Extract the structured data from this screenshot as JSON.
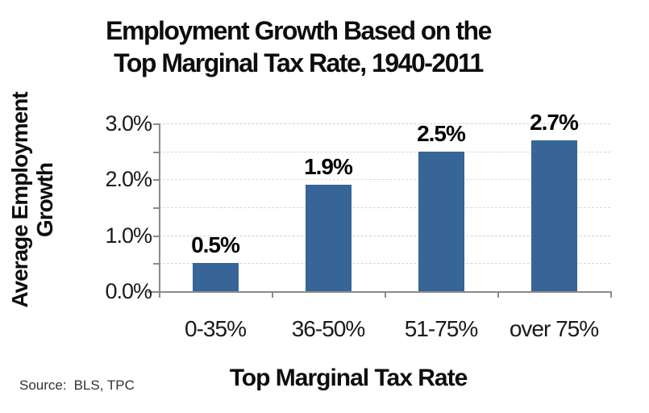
{
  "title": {
    "line1": "Employment Growth Based on the",
    "line2": "Top Marginal Tax Rate, 1940-2011"
  },
  "source": {
    "label": "Source:",
    "value": "BLS, TPC"
  },
  "chart_data": {
    "type": "bar",
    "title": "Employment Growth Based on the Top Marginal Tax Rate, 1940-2011",
    "categories": [
      "0-35%",
      "36-50%",
      "51-75%",
      "over 75%"
    ],
    "values": [
      0.5,
      1.9,
      2.5,
      2.7
    ],
    "data_labels": [
      "0.5%",
      "1.9%",
      "2.5%",
      "2.7%"
    ],
    "xlabel": "Top Marginal Tax Rate",
    "ylabel": "Average Employment Growth",
    "ylim": [
      0,
      3.0
    ],
    "ytick_values": [
      0,
      1.0,
      2.0,
      3.0
    ],
    "ytick_labels": [
      "0.0%",
      "1.0%",
      "2.0%",
      "3.0%"
    ],
    "minor_tick_interval": 0.5,
    "grid": true,
    "grid_interval": 0.5,
    "legend": false,
    "bar_color": "#376597",
    "gridline_color": "#d6d6d6",
    "axis_color": "#8a8a8a"
  }
}
